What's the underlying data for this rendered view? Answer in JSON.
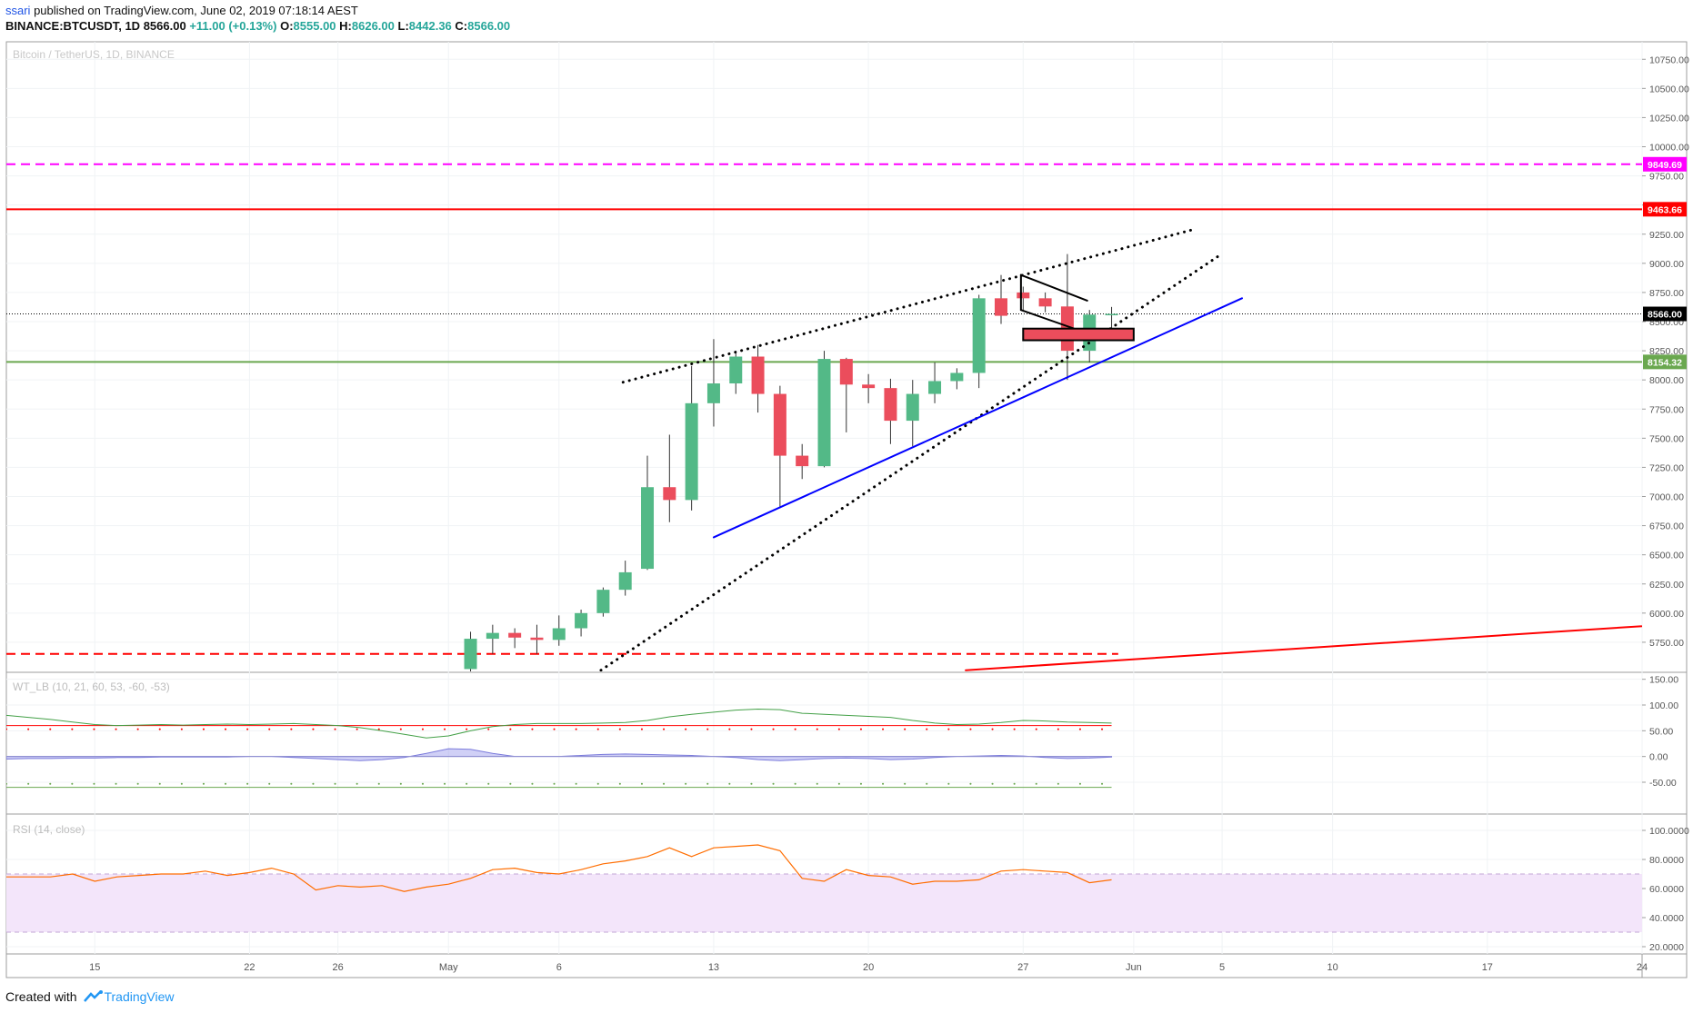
{
  "header": {
    "author": "ssari",
    "published_text": "published on TradingView.com, June 02, 2019 07:18:14 AEST",
    "symbol": "BINANCE:BTCUSDT, 1D",
    "last": "8566.00",
    "change": "+11.00 (+0.13%)",
    "o_label": "O:",
    "o_value": "8555.00",
    "h_label": "H:",
    "h_value": "8626.00",
    "l_label": "L:",
    "l_value": "8442.36",
    "c_label": "C:",
    "c_value": "8566.00"
  },
  "footer": {
    "created_with": "Created with",
    "brand": "TradingView"
  },
  "colors": {
    "up": "#53b987",
    "down": "#eb4d5c",
    "blue_line": "#0000ff",
    "magenta": "#ff00ff",
    "red": "#ff0000",
    "green_level": "#6aa84f",
    "ma": "#2e7d32",
    "rsi": "#ff6d00",
    "rsi_band": "#f3e5fa"
  },
  "chart_data": [
    {
      "type": "candlestick",
      "title": "Bitcoin / TetherUS, 1D, BINANCE",
      "ylim": [
        5500,
        10900
      ],
      "y_ticks": [
        5750,
        6000,
        6250,
        6500,
        6750,
        7000,
        7250,
        7500,
        7750,
        8000,
        8250,
        8500,
        8750,
        9000,
        9250,
        9500,
        9750,
        10000,
        10250,
        10500,
        10750
      ],
      "y_tick_labels": [
        "5750.00",
        "6000.00",
        "6250.00",
        "6500.00",
        "6750.00",
        "7000.00",
        "7250.00",
        "7500.00",
        "7750.00",
        "8000.00",
        "8250.00",
        "8500.00",
        "8750.00",
        "9000.00",
        "9250.00",
        "9500.00",
        "9750.00",
        "10000.00",
        "10250.00",
        "10500.00",
        "10750.00"
      ],
      "x_day_range": [
        -4,
        70
      ],
      "x_ticks": [
        {
          "day": 0,
          "label": "15"
        },
        {
          "day": 7,
          "label": "22"
        },
        {
          "day": 11,
          "label": "26"
        },
        {
          "day": 16,
          "label": "May"
        },
        {
          "day": 21,
          "label": "6"
        },
        {
          "day": 28,
          "label": "13"
        },
        {
          "day": 35,
          "label": "20"
        },
        {
          "day": 42,
          "label": "27"
        },
        {
          "day": 47,
          "label": "Jun"
        },
        {
          "day": 51,
          "label": "5"
        },
        {
          "day": 56,
          "label": "10"
        },
        {
          "day": 63,
          "label": "17"
        },
        {
          "day": 70,
          "label": "24"
        }
      ],
      "candles": [
        {
          "day": 17,
          "o": 5520,
          "h": 5840,
          "l": 5480,
          "c": 5780
        },
        {
          "day": 18,
          "o": 5780,
          "h": 5900,
          "l": 5650,
          "c": 5830
        },
        {
          "day": 19,
          "o": 5830,
          "h": 5870,
          "l": 5700,
          "c": 5790
        },
        {
          "day": 20,
          "o": 5790,
          "h": 5900,
          "l": 5650,
          "c": 5770
        },
        {
          "day": 21,
          "o": 5770,
          "h": 5980,
          "l": 5720,
          "c": 5870
        },
        {
          "day": 22,
          "o": 5870,
          "h": 6030,
          "l": 5800,
          "c": 6000
        },
        {
          "day": 23,
          "o": 6000,
          "h": 6220,
          "l": 5970,
          "c": 6200
        },
        {
          "day": 24,
          "o": 6200,
          "h": 6450,
          "l": 6150,
          "c": 6350
        },
        {
          "day": 25,
          "o": 6380,
          "h": 7350,
          "l": 6370,
          "c": 7080
        },
        {
          "day": 26,
          "o": 7080,
          "h": 7530,
          "l": 6780,
          "c": 6970
        },
        {
          "day": 27,
          "o": 6970,
          "h": 8120,
          "l": 6880,
          "c": 7800
        },
        {
          "day": 28,
          "o": 7800,
          "h": 8350,
          "l": 7600,
          "c": 7970
        },
        {
          "day": 29,
          "o": 7970,
          "h": 8250,
          "l": 7880,
          "c": 8200
        },
        {
          "day": 30,
          "o": 8200,
          "h": 8300,
          "l": 7720,
          "c": 7880
        },
        {
          "day": 31,
          "o": 7880,
          "h": 7950,
          "l": 6900,
          "c": 7350
        },
        {
          "day": 32,
          "o": 7350,
          "h": 7450,
          "l": 7150,
          "c": 7260
        },
        {
          "day": 33,
          "o": 7260,
          "h": 8250,
          "l": 7250,
          "c": 8180
        },
        {
          "day": 34,
          "o": 8180,
          "h": 8190,
          "l": 7550,
          "c": 7960
        },
        {
          "day": 35,
          "o": 7960,
          "h": 8050,
          "l": 7800,
          "c": 7930
        },
        {
          "day": 36,
          "o": 7930,
          "h": 8010,
          "l": 7450,
          "c": 7650
        },
        {
          "day": 37,
          "o": 7650,
          "h": 8000,
          "l": 7430,
          "c": 7880
        },
        {
          "day": 38,
          "o": 7880,
          "h": 8150,
          "l": 7800,
          "c": 7990
        },
        {
          "day": 39,
          "o": 7990,
          "h": 8100,
          "l": 7920,
          "c": 8060
        },
        {
          "day": 40,
          "o": 8060,
          "h": 8730,
          "l": 7930,
          "c": 8700
        },
        {
          "day": 41,
          "o": 8700,
          "h": 8900,
          "l": 8480,
          "c": 8550
        },
        {
          "day": 42,
          "o": 8750,
          "h": 8800,
          "l": 8600,
          "c": 8700
        },
        {
          "day": 43,
          "o": 8700,
          "h": 8750,
          "l": 8580,
          "c": 8630
        },
        {
          "day": 44,
          "o": 8630,
          "h": 9080,
          "l": 8000,
          "c": 8250
        },
        {
          "day": 45,
          "o": 8250,
          "h": 8600,
          "l": 8150,
          "c": 8560
        },
        {
          "day": 46,
          "o": 8555,
          "h": 8626,
          "l": 8442,
          "c": 8566
        }
      ],
      "levels": [
        {
          "price": 9849.69,
          "label": "9849.69",
          "color": "#ff00ff",
          "style": "dashed"
        },
        {
          "price": 9463.66,
          "label": "9463.66",
          "color": "#ff0000",
          "style": "solid"
        },
        {
          "price": 8566.0,
          "label": "8566.00",
          "color": "#000000",
          "style": "dotted"
        },
        {
          "price": 8154.32,
          "label": "8154.32",
          "color": "#6aa84f",
          "style": "solid"
        },
        {
          "price": 5650,
          "label": "",
          "color": "#ff0000",
          "style": "dashed"
        }
      ],
      "trendlines": [
        {
          "from": [
            23.9,
            7980
          ],
          "to": [
            49.7,
            9290
          ],
          "color": "#000000",
          "style": "dotted"
        },
        {
          "from": [
            22.9,
            5510
          ],
          "to": [
            50.9,
            9070
          ],
          "color": "#000000",
          "style": "dotted"
        },
        {
          "from": [
            28.0,
            6650
          ],
          "to": [
            51.9,
            8700
          ],
          "color": "#0000ff",
          "style": "solid"
        },
        {
          "from": [
            39.4,
            5510
          ],
          "to": [
            74.2,
            5940
          ],
          "color": "#ff0000",
          "style": "solid"
        },
        {
          "from": [
            41.9,
            8900
          ],
          "to": [
            44.9,
            8680
          ],
          "color": "#000000",
          "style": "solid"
        },
        {
          "from": [
            41.9,
            8600
          ],
          "to": [
            44.9,
            8400
          ],
          "color": "#000000",
          "style": "solid"
        },
        {
          "from": [
            41.9,
            8900
          ],
          "to": [
            41.9,
            8600
          ],
          "color": "#000000",
          "style": "solid"
        }
      ],
      "rect": {
        "day_from": 42.0,
        "day_to": 47.0,
        "price_low": 8340,
        "price_high": 8440,
        "color": "#eb4d5c"
      }
    },
    {
      "type": "line",
      "title": "WT_LB (10, 21, 60, 53, -60, -53)",
      "ylim": [
        -110,
        160
      ],
      "y_ticks": [
        -50,
        0,
        50,
        100,
        150
      ],
      "y_tick_labels": [
        "-50.00",
        "0.00",
        "50.00",
        "100.00",
        "150.00"
      ],
      "x": [
        -4,
        -3,
        -2,
        -1,
        0,
        1,
        2,
        3,
        4,
        5,
        6,
        7,
        8,
        9,
        10,
        11,
        12,
        13,
        14,
        15,
        16,
        17,
        18,
        19,
        20,
        21,
        22,
        23,
        24,
        25,
        26,
        27,
        28,
        29,
        30,
        31,
        32,
        33,
        34,
        35,
        36,
        37,
        38,
        39,
        40,
        41,
        42,
        43,
        44,
        45,
        46
      ],
      "series": [
        {
          "values": [
            80,
            76,
            72,
            67,
            62,
            60,
            61,
            62,
            61,
            62,
            63,
            62,
            63,
            64,
            62,
            60,
            56,
            50,
            43,
            36,
            40,
            50,
            58,
            62,
            64,
            64,
            64,
            65,
            66,
            70,
            77,
            82,
            86,
            90,
            92,
            91,
            84,
            82,
            80,
            78,
            76,
            70,
            65,
            62,
            63,
            66,
            70,
            69,
            67,
            66,
            65
          ]
        },
        {
          "values": [
            -5,
            -4,
            -4,
            -3,
            -3,
            -2,
            -2,
            -1,
            -1,
            -1,
            -1,
            0,
            0,
            -2,
            -4,
            -6,
            -8,
            -6,
            -2,
            6,
            15,
            14,
            6,
            0,
            0,
            0,
            2,
            4,
            5,
            4,
            3,
            2,
            0,
            -2,
            -6,
            -8,
            -6,
            -4,
            -3,
            -4,
            -6,
            -5,
            -2,
            0,
            1,
            2,
            1,
            -2,
            -4,
            -3,
            -1
          ]
        }
      ],
      "levels": [
        60,
        53,
        -53,
        -60
      ]
    },
    {
      "type": "line",
      "title": "RSI (14, close)",
      "ylim": [
        15,
        110
      ],
      "y_ticks": [
        20,
        40,
        60,
        80,
        100
      ],
      "y_tick_labels": [
        "20.0000",
        "40.0000",
        "60.0000",
        "80.0000",
        "100.0000"
      ],
      "band": [
        30,
        70
      ],
      "x": [
        -4,
        -3,
        -2,
        -1,
        0,
        1,
        2,
        3,
        4,
        5,
        6,
        7,
        8,
        9,
        10,
        11,
        12,
        13,
        14,
        15,
        16,
        17,
        18,
        19,
        20,
        21,
        22,
        23,
        24,
        25,
        26,
        27,
        28,
        29,
        30,
        31,
        32,
        33,
        34,
        35,
        36,
        37,
        38,
        39,
        40,
        41,
        42,
        43,
        44,
        45,
        46
      ],
      "series": [
        {
          "values": [
            68,
            68,
            68,
            70,
            65,
            68,
            69,
            70,
            70,
            72,
            69,
            71,
            74,
            70,
            59,
            62,
            61,
            62,
            58,
            61,
            63,
            67,
            73,
            74,
            71,
            70,
            73,
            77,
            79,
            82,
            88,
            82,
            88,
            89,
            90,
            86,
            67,
            65,
            73,
            69,
            68,
            63,
            65,
            65,
            66,
            72,
            73,
            72,
            71,
            64,
            66
          ]
        }
      ]
    }
  ]
}
